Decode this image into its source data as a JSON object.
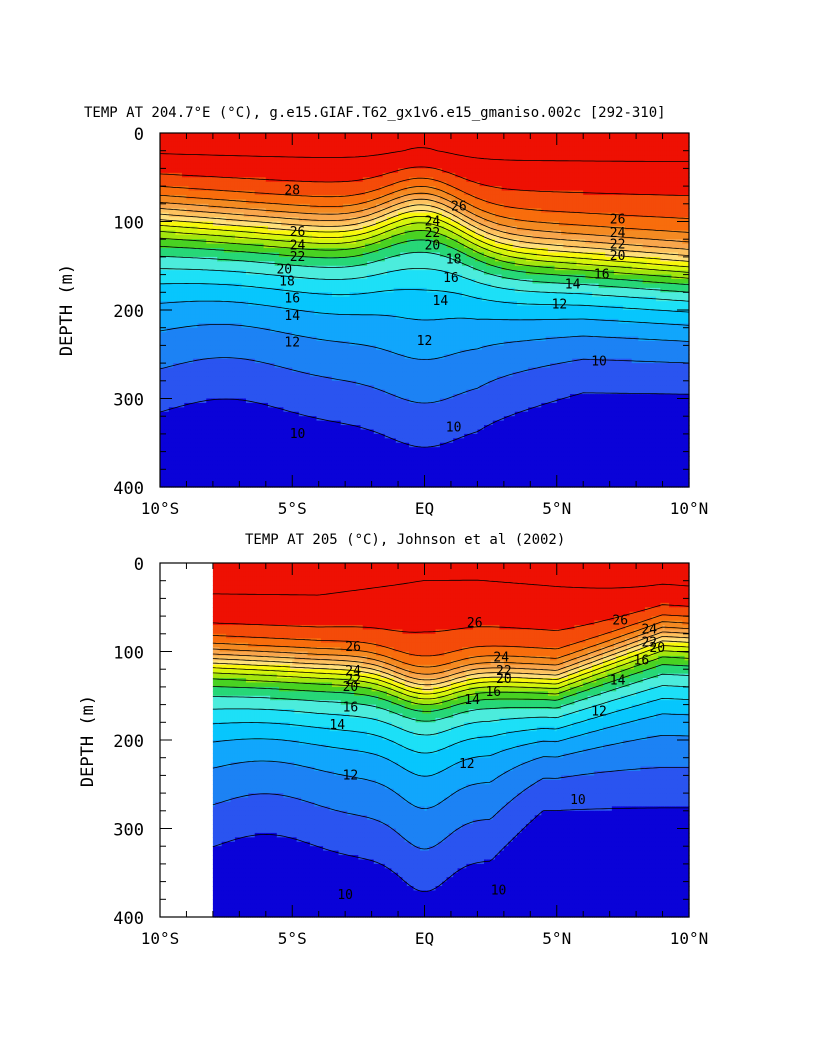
{
  "chart_data": [
    {
      "type": "heatmap",
      "subtype": "filled-contour",
      "title": "TEMP AT 204.7°E (°C), g.e15.GIAF.T62_gx1v6.e15_gmaniso.002c [292-310]",
      "xlabel": "",
      "ylabel": "DEPTH (m)",
      "xlim": [
        -10,
        10
      ],
      "ylim": [
        400,
        0
      ],
      "x_ticks": [
        -10,
        -5,
        0,
        5,
        10
      ],
      "x_tick_labels": [
        "10°S",
        "5°S",
        "EQ",
        "5°N",
        "10°N"
      ],
      "y_ticks": [
        0,
        100,
        200,
        300,
        400
      ],
      "y_tick_labels": [
        "0",
        "100",
        "200",
        "300",
        "400"
      ],
      "data_x_range": [
        -10,
        10
      ],
      "contour_interval": 1,
      "contour_labels": [
        {
          "text": "28",
          "x": -5.0,
          "y": 65
        },
        {
          "text": "26",
          "x": 1.3,
          "y": 83
        },
        {
          "text": "24",
          "x": 0.3,
          "y": 100
        },
        {
          "text": "22",
          "x": 0.3,
          "y": 113
        },
        {
          "text": "20",
          "x": 0.3,
          "y": 127
        },
        {
          "text": "18",
          "x": 1.1,
          "y": 143
        },
        {
          "text": "16",
          "x": 1.0,
          "y": 164
        },
        {
          "text": "14",
          "x": 0.6,
          "y": 190
        },
        {
          "text": "12",
          "x": 0.0,
          "y": 235
        },
        {
          "text": "10",
          "x": 1.1,
          "y": 333
        },
        {
          "text": "26",
          "x": -4.8,
          "y": 112
        },
        {
          "text": "24",
          "x": -4.8,
          "y": 127
        },
        {
          "text": "22",
          "x": -4.8,
          "y": 140
        },
        {
          "text": "20",
          "x": -5.3,
          "y": 154
        },
        {
          "text": "18",
          "x": -5.2,
          "y": 168
        },
        {
          "text": "16",
          "x": -5.0,
          "y": 187
        },
        {
          "text": "14",
          "x": -5.0,
          "y": 207
        },
        {
          "text": "12",
          "x": -5.0,
          "y": 237
        },
        {
          "text": "10",
          "x": -4.8,
          "y": 340
        },
        {
          "text": "26",
          "x": 7.3,
          "y": 98
        },
        {
          "text": "24",
          "x": 7.3,
          "y": 113
        },
        {
          "text": "22",
          "x": 7.3,
          "y": 126
        },
        {
          "text": "20",
          "x": 7.3,
          "y": 139
        },
        {
          "text": "16",
          "x": 6.7,
          "y": 160
        },
        {
          "text": "14",
          "x": 5.6,
          "y": 171
        },
        {
          "text": "12",
          "x": 5.1,
          "y": 194
        },
        {
          "text": "10",
          "x": 6.6,
          "y": 258
        }
      ]
    },
    {
      "type": "heatmap",
      "subtype": "filled-contour",
      "title": "TEMP AT 205 (°C), Johnson et al (2002)",
      "xlabel": "",
      "ylabel": "DEPTH (m)",
      "xlim": [
        -10,
        10
      ],
      "ylim": [
        400,
        0
      ],
      "x_ticks": [
        -10,
        -5,
        0,
        5,
        10
      ],
      "x_tick_labels": [
        "10°S",
        "5°S",
        "EQ",
        "5°N",
        "10°N"
      ],
      "y_ticks": [
        0,
        100,
        200,
        300,
        400
      ],
      "y_tick_labels": [
        "0",
        "100",
        "200",
        "300",
        "400"
      ],
      "data_x_range": [
        -8,
        10
      ],
      "contour_interval": 1,
      "contour_labels": [
        {
          "text": "26",
          "x": -2.7,
          "y": 95
        },
        {
          "text": "24",
          "x": -2.7,
          "y": 122
        },
        {
          "text": "22",
          "x": -2.7,
          "y": 132
        },
        {
          "text": "20",
          "x": -2.8,
          "y": 140
        },
        {
          "text": "16",
          "x": -2.8,
          "y": 163
        },
        {
          "text": "14",
          "x": -3.3,
          "y": 183
        },
        {
          "text": "12",
          "x": -2.8,
          "y": 240
        },
        {
          "text": "10",
          "x": -3.0,
          "y": 375
        },
        {
          "text": "26",
          "x": 1.9,
          "y": 68
        },
        {
          "text": "24",
          "x": 2.9,
          "y": 107
        },
        {
          "text": "22",
          "x": 3.0,
          "y": 122
        },
        {
          "text": "20",
          "x": 3.0,
          "y": 131
        },
        {
          "text": "16",
          "x": 2.6,
          "y": 146
        },
        {
          "text": "14",
          "x": 1.8,
          "y": 155
        },
        {
          "text": "12",
          "x": 1.6,
          "y": 227
        },
        {
          "text": "10",
          "x": 2.8,
          "y": 370
        },
        {
          "text": "26",
          "x": 7.4,
          "y": 65
        },
        {
          "text": "24",
          "x": 8.5,
          "y": 75
        },
        {
          "text": "22",
          "x": 8.5,
          "y": 90
        },
        {
          "text": "20",
          "x": 8.8,
          "y": 96
        },
        {
          "text": "16",
          "x": 8.2,
          "y": 110
        },
        {
          "text": "14",
          "x": 7.3,
          "y": 133
        },
        {
          "text": "12",
          "x": 6.6,
          "y": 168
        },
        {
          "text": "10",
          "x": 5.8,
          "y": 268
        }
      ]
    }
  ],
  "colorbar_colors": [
    "#0a02d8",
    "#2a54f0",
    "#1c82f4",
    "#11a6fc",
    "#07c6fd",
    "#1de0f7",
    "#4cecdc",
    "#27d777",
    "#49d222",
    "#a3e60e",
    "#d6f50d",
    "#f9f80c",
    "#ffe07b",
    "#fdc25f",
    "#f9a64c",
    "#f48a22",
    "#f86d0c",
    "#f44b09",
    "#ee1003"
  ]
}
